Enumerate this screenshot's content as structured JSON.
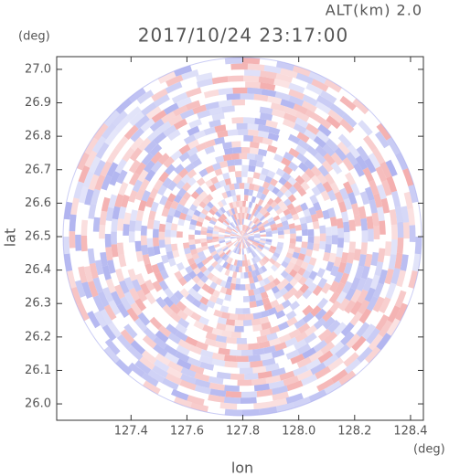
{
  "chart_data": {
    "type": "radar-ppi",
    "title": "2017/10/24 23:17:00",
    "subtitle": "ALT(km) 2.0",
    "x_label": "lon",
    "y_label": "lat",
    "x_unit": "(deg)",
    "y_unit": "(deg)",
    "xlim": [
      127.134,
      128.446
    ],
    "ylim": [
      25.951,
      27.038
    ],
    "xticks": [
      127.4,
      127.6,
      127.8,
      {
        "value": 128.0,
        "label": "128.0"
      },
      128.2,
      128.4
    ],
    "yticks": [
      {
        "value": 26.0,
        "label": "26.0"
      },
      26.1,
      26.2,
      26.3,
      26.4,
      26.5,
      26.6,
      26.7,
      26.8,
      26.9,
      {
        "value": 27.0,
        "label": "27.0"
      }
    ],
    "colors": [
      "#f2a4a4",
      "#a8acee"
    ]
  }
}
